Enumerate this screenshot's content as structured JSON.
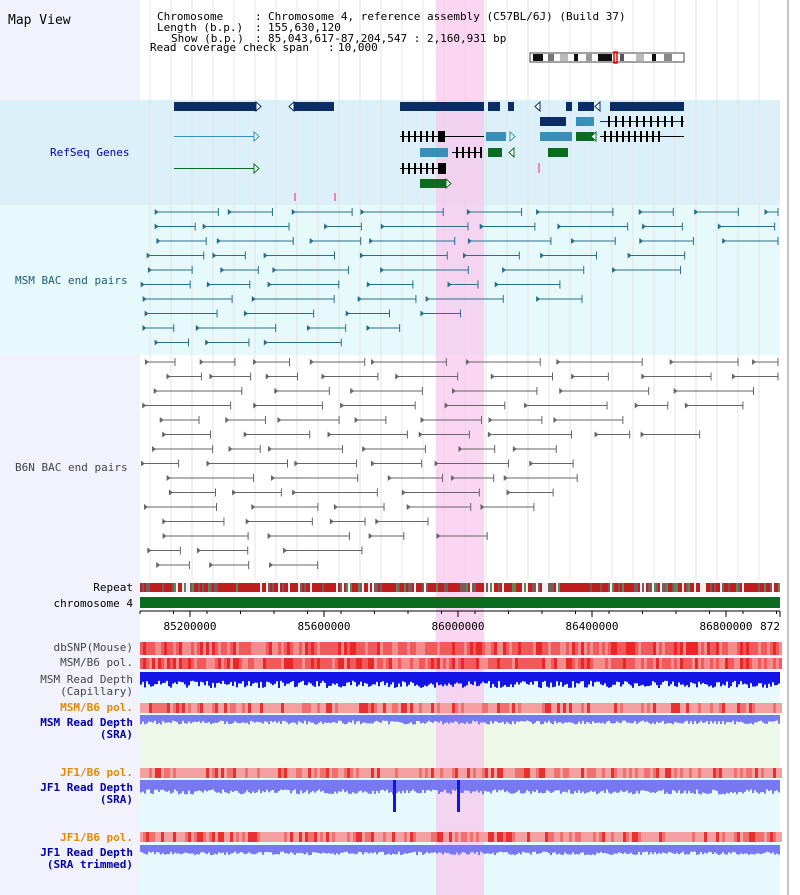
{
  "app_title": "Map View",
  "header": {
    "rows": [
      {
        "label": "Chromosome",
        "sep": ":",
        "value": "Chromosome 4, reference assembly (C57BL/6J) (Build 37)"
      },
      {
        "label": "Length (b.p.)",
        "sep": ":",
        "value": "155,630,120"
      },
      {
        "label": "Show (b.p.)",
        "sep": ":",
        "value": "85,043,617-87,204,547 : 2,160,931 bp"
      },
      {
        "label": "Read coverage check span",
        "sep": ":",
        "value": "10,000"
      }
    ]
  },
  "tracks": {
    "refseq": "RefSeq Genes",
    "msm_bac": "MSM BAC end pairs",
    "b6n_bac": "B6N BAC end pairs",
    "repeat": "Repeat",
    "chromosome": "chromosome 4",
    "dbsnp": "dbSNP(Mouse)",
    "msm_b6_pol_1": "MSM/B6 pol.",
    "msm_depth_cap_1": "MSM Read Depth",
    "msm_depth_cap_2": "(Capillary)",
    "msm_b6_pol_2": "MSM/B6 pol.",
    "msm_depth_sra_1": "MSM Read Depth",
    "msm_depth_sra_2": "(SRA)",
    "jf1_pol_1": "JF1/B6 pol.",
    "jf1_depth_sra_1": "JF1 Read Depth",
    "jf1_depth_sra_2": "(SRA)",
    "jf1_pol_2": "JF1/B6 pol.",
    "jf1_depth_trim_1": "JF1 Read Depth",
    "jf1_depth_trim_2": "(SRA trimmed)"
  },
  "axis": {
    "ticks": [
      "85200000",
      "85600000",
      "86000000",
      "86400000",
      "86800000",
      "872"
    ]
  },
  "colors": {
    "refseq_bg": "#dcf0fa",
    "msm_bg": "#e6fafc",
    "highlight": "#fadcf0",
    "gene_dark": "#0b2d66",
    "gene_mid": "#3a8fb8",
    "gene_green": "#0b6b1e",
    "bac_msm": "#2a6e8c",
    "bac_b6n": "#666666",
    "repeat_red": "#c01e1e",
    "chrom_green": "#0b6b1e",
    "depth_blue": "#1414e6",
    "depth_light": "#7878f0",
    "pol_label_orange": "#e08a00",
    "depth_label_blue": "#0000aa"
  }
}
